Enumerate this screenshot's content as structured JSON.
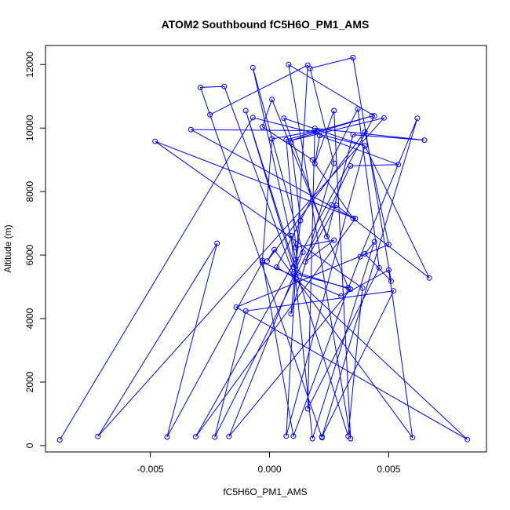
{
  "chart_data": {
    "type": "line",
    "title": "ATOM2 Southbound fC5H6O_PM1_AMS",
    "xlabel": "fC5H6O_PM1_AMS",
    "ylabel": "Altitude (m)",
    "xlim": [
      -0.0094,
      0.0091
    ],
    "ylim": [
      -200,
      12600
    ],
    "xticks": [
      -0.005,
      0.0,
      0.005
    ],
    "xtick_labels": [
      "-0.005",
      "0.000",
      "0.005"
    ],
    "yticks": [
      0,
      2000,
      4000,
      6000,
      8000,
      10000,
      12000
    ],
    "ytick_labels": [
      "0",
      "2000",
      "4000",
      "6000",
      "8000",
      "10000",
      "12000"
    ],
    "grid": false,
    "series": [
      {
        "color": "#0000ff",
        "points": [
          [
            -0.0088,
            180
          ],
          [
            -0.0007,
            10330
          ],
          [
            0.004,
            9440
          ],
          [
            0.0007,
            300
          ],
          [
            0.0016,
            11980
          ],
          [
            -0.0025,
            10420
          ],
          [
            0.0022,
            250
          ],
          [
            -0.0029,
            11280
          ],
          [
            -0.0019,
            11310
          ],
          [
            0.001,
            5420
          ],
          [
            0.0033,
            4970
          ],
          [
            0.0001,
            10900
          ],
          [
            -0.0003,
            10040
          ],
          [
            0.0018,
            9000
          ],
          [
            0.0035,
            7160
          ],
          [
            -0.0033,
            9950
          ],
          [
            0.002,
            9920
          ],
          [
            0.0001,
            9660
          ],
          [
            -0.0003,
            5830
          ],
          [
            0.001,
            300
          ],
          [
            0.0038,
            5950
          ],
          [
            0.0062,
            10310
          ],
          [
            0.0022,
            280
          ],
          [
            0.0052,
            4870
          ],
          [
            -0.001,
            4240
          ],
          [
            -0.0023,
            270
          ],
          [
            0.0026,
            7580
          ],
          [
            0.0034,
            8810
          ],
          [
            0.0054,
            8850
          ],
          [
            0.0021,
            9760
          ],
          [
            0.0019,
            8880
          ],
          [
            0.0027,
            10550
          ],
          [
            0.0034,
            220
          ],
          [
            0.0008,
            12000
          ],
          [
            0.0044,
            10380
          ],
          [
            0.001,
            5620
          ],
          [
            -0.001,
            10550
          ],
          [
            0.0033,
            300
          ],
          [
            0.0039,
            4960
          ],
          [
            -0.0048,
            9580
          ],
          [
            0.0036,
            7150
          ],
          [
            -0.0031,
            280
          ],
          [
            0.0011,
            5860
          ],
          [
            -0.0007,
            11900
          ],
          [
            0.0014,
            6090
          ],
          [
            -0.0017,
            290
          ],
          [
            0.0034,
            4920
          ],
          [
            0.0012,
            5440
          ],
          [
            0.0007,
            9630
          ],
          [
            0.0043,
            10380
          ],
          [
            0.0008,
            9590
          ],
          [
            0.0048,
            10320
          ],
          [
            -0.0072,
            290
          ],
          [
            -0.0022,
            6370
          ],
          [
            -0.0043,
            270
          ],
          [
            -0.0003,
            5770
          ],
          [
            0.003,
            4710
          ],
          [
            0.005,
            5530
          ],
          [
            0.006,
            250
          ],
          [
            0.0002,
            6170
          ],
          [
            -0.0001,
            5810
          ],
          [
            0.004,
            9880
          ],
          [
            0.005,
            6330
          ],
          [
            -0.0014,
            4360
          ],
          [
            0.0083,
            190
          ],
          [
            0.0011,
            5250
          ],
          [
            0.0003,
            5620
          ],
          [
            0.0037,
            10600
          ],
          [
            0.0046,
            5600
          ],
          [
            0.0016,
            1160
          ],
          [
            0.0019,
            9990
          ],
          [
            0.0065,
            9620
          ],
          [
            0.0035,
            9790
          ],
          [
            0.0024,
            6580
          ],
          [
            0.0006,
            10310
          ],
          [
            0.004,
            9440
          ],
          [
            0.0067,
            5280
          ],
          [
            0.0028,
            7570
          ],
          [
            0.0015,
            5790
          ],
          [
            0.0027,
            6470
          ],
          [
            0.0011,
            6240
          ],
          [
            0.0009,
            6610
          ],
          [
            0.0018,
            220
          ],
          [
            0.0044,
            6420
          ],
          [
            0.004,
            6040
          ],
          [
            0.0051,
            5180
          ],
          [
            0.0035,
            12220
          ],
          [
            0.0017,
            11880
          ],
          [
            0.0027,
            8890
          ],
          [
            0.0009,
            4150
          ],
          [
            0.0013,
            7090
          ],
          [
            0.0009,
            9540
          ]
        ]
      }
    ]
  }
}
